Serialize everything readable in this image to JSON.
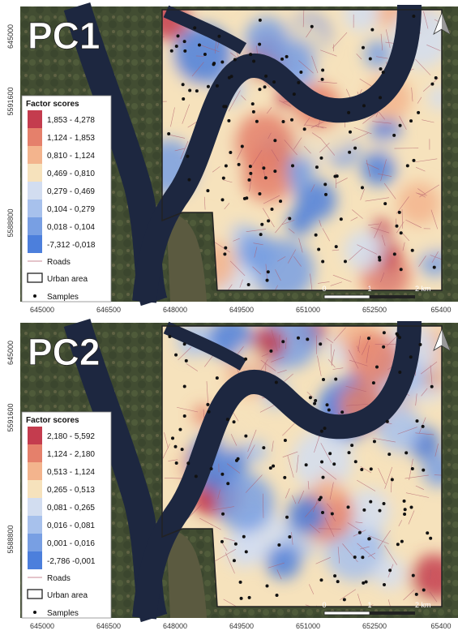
{
  "panels": [
    {
      "label": "PC1",
      "legend_title": "Factor scores",
      "classes": [
        {
          "label": "1,853 - 4,278",
          "color": "#c43c4e"
        },
        {
          "label": "1,124 - 1,853",
          "color": "#e5806b"
        },
        {
          "label": "0,810 - 1,124",
          "color": "#f3b48d"
        },
        {
          "label": "0,469 - 0,810",
          "color": "#f6e2bc"
        },
        {
          "label": "0,279 - 0,469",
          "color": "#d2ddf0"
        },
        {
          "label": "0,104 - 0,279",
          "color": "#a7c1ec"
        },
        {
          "label": "0,018 - 0,104",
          "color": "#789fe3"
        },
        {
          "label": "-7,312 -0,018",
          "color": "#4c7fdc"
        }
      ]
    },
    {
      "label": "PC2",
      "legend_title": "Factor scores",
      "classes": [
        {
          "label": "2,180 - 5,592",
          "color": "#c43c4e"
        },
        {
          "label": "1,124 - 2,180",
          "color": "#e5806b"
        },
        {
          "label": "0,513 - 1,124",
          "color": "#f3b48d"
        },
        {
          "label": "0,265 - 0,513",
          "color": "#f6e2bc"
        },
        {
          "label": "0,081 - 0,265",
          "color": "#d2ddf0"
        },
        {
          "label": "0,016 - 0,081",
          "color": "#a7c1ec"
        },
        {
          "label": "0,001 - 0,016",
          "color": "#789fe3"
        },
        {
          "label": "-2,786 -0,001",
          "color": "#4c7fdc"
        }
      ]
    }
  ],
  "legend_items": {
    "roads": "Roads",
    "urban_area": "Urban area",
    "samples": "Samples"
  },
  "x_axis_labels": [
    "645000",
    "646500",
    "648000",
    "649500",
    "651000",
    "652500",
    "65400"
  ],
  "y_axis_labels": [
    "645000",
    "5591600",
    "5588800"
  ],
  "scale_bar": [
    "0",
    "1",
    "2 km"
  ]
}
